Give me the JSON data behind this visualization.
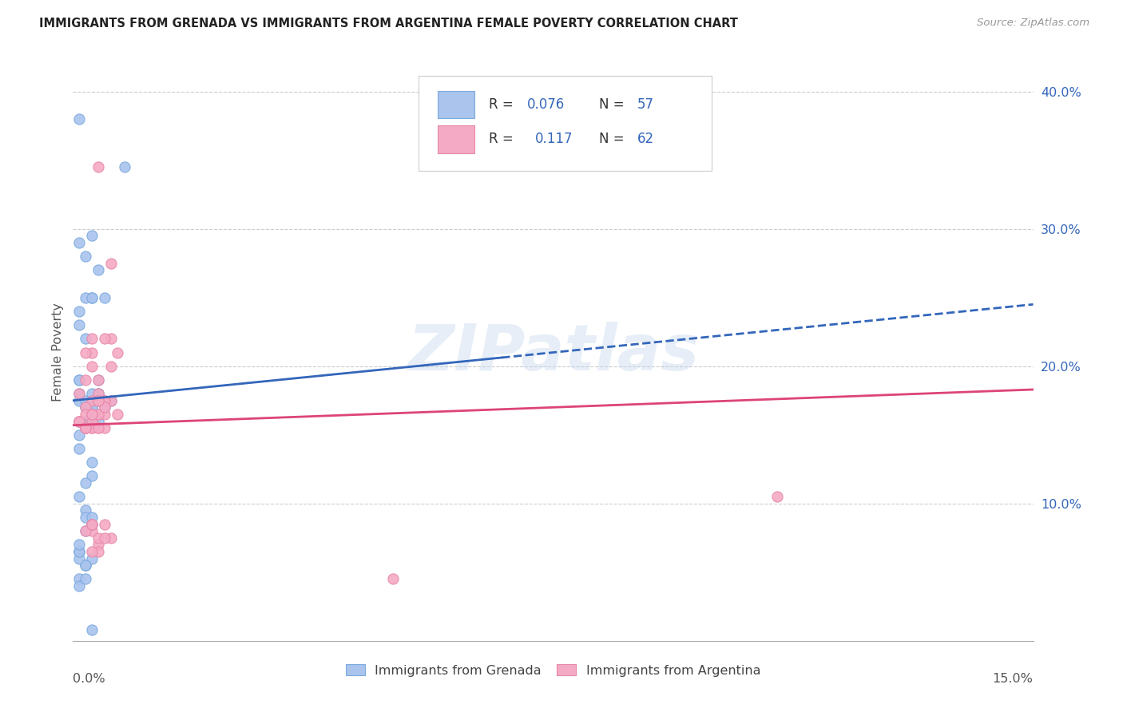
{
  "title": "IMMIGRANTS FROM GRENADA VS IMMIGRANTS FROM ARGENTINA FEMALE POVERTY CORRELATION CHART",
  "source": "Source: ZipAtlas.com",
  "ylabel": "Female Poverty",
  "xlim": [
    0.0,
    0.15
  ],
  "ylim": [
    0.0,
    0.42
  ],
  "ytick_vals": [
    0.1,
    0.2,
    0.3,
    0.4
  ],
  "ytick_labels": [
    "10.0%",
    "20.0%",
    "30.0%",
    "40.0%"
  ],
  "grenada_color": "#aac4ee",
  "grenada_edge": "#7aaade",
  "argentina_color": "#f4aac4",
  "argentina_edge": "#e888aa",
  "trendline_grenada_color": "#3366bb",
  "trendline_argentina_color": "#dd4477",
  "watermark": "ZIPatlas",
  "label_grenada": "Immigrants from Grenada",
  "label_argentina": "Immigrants from Argentina",
  "legend_text_color": "#3366bb",
  "legend_label_color": "#555555",
  "grenada_trend_x0": 0.0,
  "grenada_trend_y0": 0.175,
  "grenada_trend_x1": 0.15,
  "grenada_trend_y1": 0.245,
  "argentina_trend_x0": 0.0,
  "argentina_trend_y0": 0.157,
  "argentina_trend_x1": 0.15,
  "argentina_trend_y1": 0.183,
  "grenada_x": [
    0.001,
    0.008,
    0.004,
    0.003,
    0.001,
    0.002,
    0.001,
    0.001,
    0.002,
    0.003,
    0.001,
    0.001,
    0.002,
    0.003,
    0.004,
    0.005,
    0.004,
    0.003,
    0.002,
    0.001,
    0.001,
    0.002,
    0.003,
    0.004,
    0.001,
    0.002,
    0.003,
    0.003,
    0.002,
    0.001,
    0.001,
    0.003,
    0.005,
    0.006,
    0.002,
    0.004,
    0.003,
    0.002,
    0.001,
    0.002,
    0.003,
    0.002,
    0.001,
    0.002,
    0.001,
    0.002,
    0.003,
    0.001,
    0.001,
    0.002,
    0.003,
    0.001,
    0.001,
    0.002,
    0.001,
    0.002,
    0.003
  ],
  "grenada_y": [
    0.38,
    0.345,
    0.27,
    0.295,
    0.29,
    0.28,
    0.24,
    0.23,
    0.22,
    0.25,
    0.19,
    0.18,
    0.25,
    0.25,
    0.19,
    0.25,
    0.18,
    0.17,
    0.16,
    0.16,
    0.175,
    0.17,
    0.175,
    0.18,
    0.19,
    0.175,
    0.18,
    0.17,
    0.16,
    0.15,
    0.14,
    0.13,
    0.17,
    0.175,
    0.17,
    0.16,
    0.12,
    0.115,
    0.105,
    0.095,
    0.085,
    0.09,
    0.065,
    0.055,
    0.065,
    0.055,
    0.06,
    0.045,
    0.04,
    0.08,
    0.09,
    0.06,
    0.065,
    0.045,
    0.07,
    0.055,
    0.008
  ],
  "argentina_x": [
    0.001,
    0.002,
    0.003,
    0.004,
    0.004,
    0.006,
    0.003,
    0.003,
    0.002,
    0.001,
    0.002,
    0.003,
    0.004,
    0.005,
    0.006,
    0.007,
    0.003,
    0.004,
    0.003,
    0.002,
    0.001,
    0.002,
    0.003,
    0.004,
    0.005,
    0.003,
    0.005,
    0.004,
    0.003,
    0.002,
    0.002,
    0.002,
    0.003,
    0.004,
    0.005,
    0.004,
    0.003,
    0.003,
    0.005,
    0.004,
    0.003,
    0.002,
    0.001,
    0.002,
    0.003,
    0.004,
    0.005,
    0.006,
    0.004,
    0.003,
    0.004,
    0.003,
    0.006,
    0.005,
    0.004,
    0.003,
    0.002,
    0.11,
    0.007,
    0.006,
    0.005,
    0.05
  ],
  "argentina_y": [
    0.16,
    0.155,
    0.155,
    0.155,
    0.345,
    0.275,
    0.21,
    0.2,
    0.19,
    0.18,
    0.21,
    0.165,
    0.18,
    0.155,
    0.175,
    0.165,
    0.22,
    0.175,
    0.165,
    0.155,
    0.16,
    0.155,
    0.16,
    0.19,
    0.175,
    0.165,
    0.175,
    0.165,
    0.175,
    0.155,
    0.17,
    0.165,
    0.155,
    0.155,
    0.165,
    0.165,
    0.08,
    0.165,
    0.17,
    0.175,
    0.085,
    0.08,
    0.16,
    0.155,
    0.085,
    0.07,
    0.085,
    0.075,
    0.065,
    0.065,
    0.075,
    0.085,
    0.22,
    0.22,
    0.175,
    0.165,
    0.155,
    0.105,
    0.21,
    0.2,
    0.075,
    0.045
  ]
}
